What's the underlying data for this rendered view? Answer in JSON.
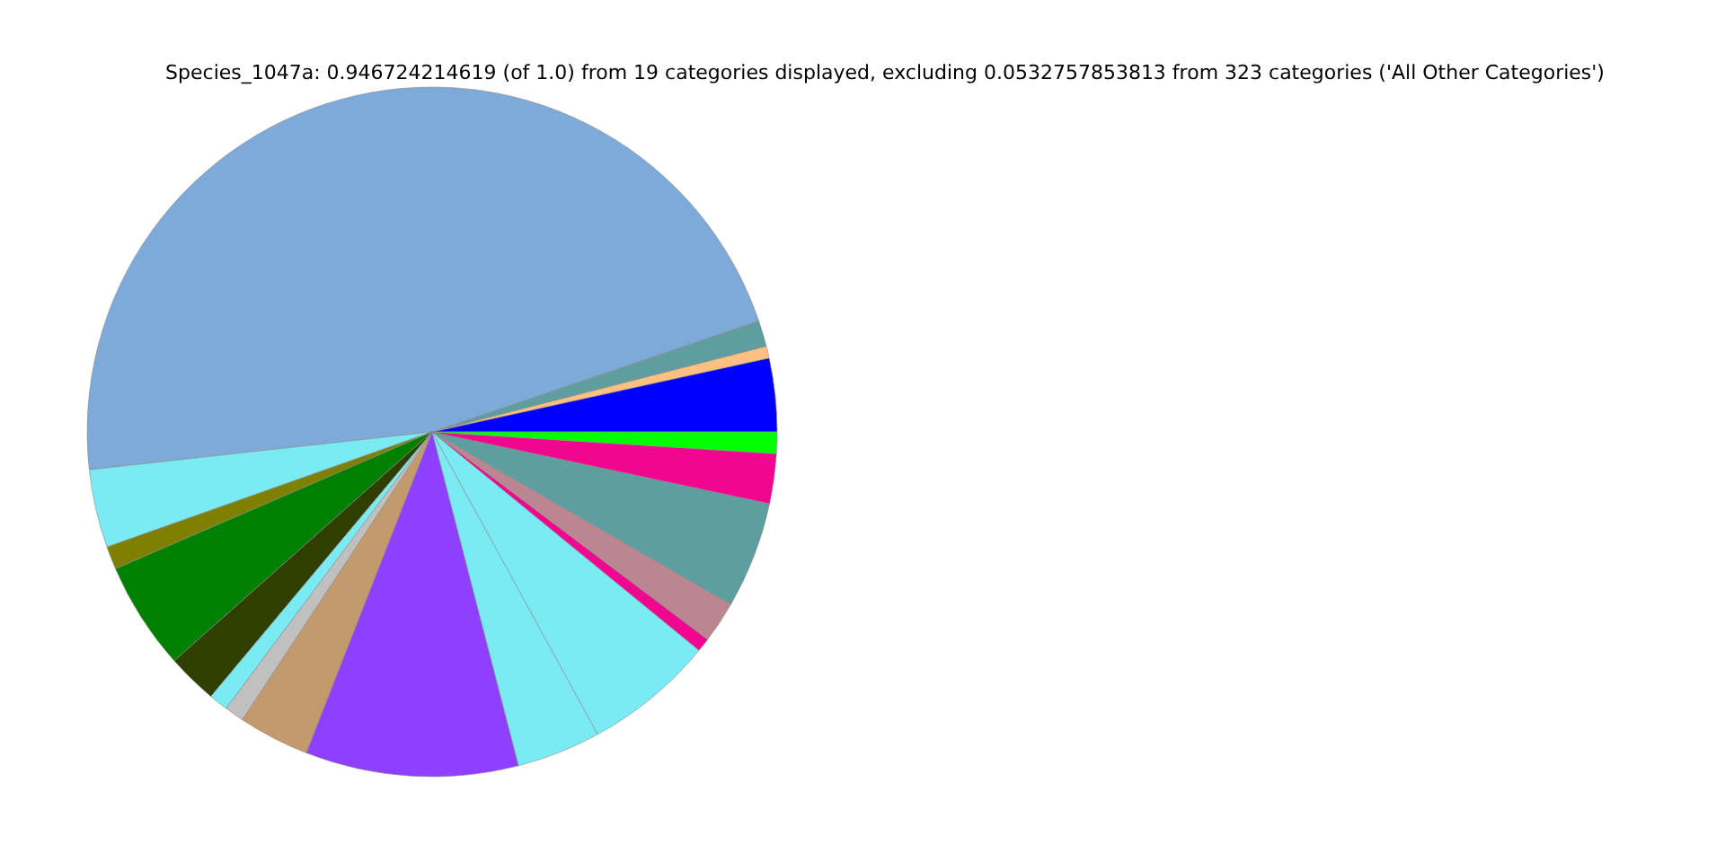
{
  "chart_data": {
    "type": "pie",
    "title": "Species_1047a: 0.946724214619 (of 1.0) from 19 categories displayed, excluding 0.0532757853813 from 323 categories ('All Other Categories')",
    "categories": [
      null,
      null,
      null,
      null,
      null,
      null,
      null,
      null,
      null,
      null,
      null,
      null,
      null,
      null,
      null,
      null,
      null,
      null,
      null
    ],
    "values": [
      3.44,
      0.56,
      1.22,
      46.53,
      3.67,
      1.08,
      5.06,
      2.36,
      0.89,
      0.92,
      3.33,
      9.97,
      3.94,
      6.11,
      0.64,
      1.94,
      5.0,
      2.33,
      1.01
    ],
    "colors": [
      "#0000ff",
      "#ffc080",
      "#5f9ea0",
      "#7eaad9",
      "#7aebf2",
      "#808000",
      "#008000",
      "#2e3f00",
      "#7aebf2",
      "#c0c0c0",
      "#c49a6c",
      "#8f3fff",
      "#7aebf2",
      "#7aebf2",
      "#f0068f",
      "#bc8690",
      "#5f9ea0",
      "#f0068f",
      "#00ff00"
    ]
  }
}
